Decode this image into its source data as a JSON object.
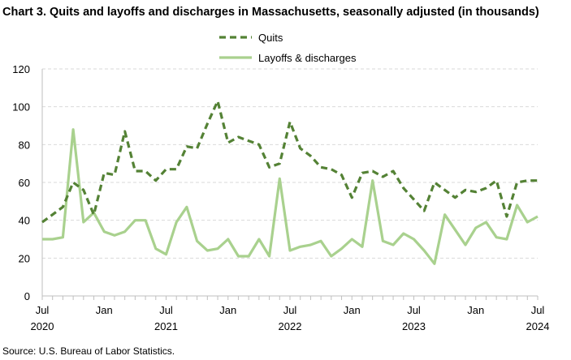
{
  "chart_data": {
    "type": "line",
    "title": "Chart 3. Quits and layoffs and discharges in Massachusetts, seasonally adjusted (in thousands)",
    "source": "Source: U.S. Bureau of Labor Statistics.",
    "legend_position": "top-center",
    "grid": true,
    "ylim": [
      0,
      120
    ],
    "yticks": [
      0,
      20,
      40,
      60,
      80,
      100,
      120
    ],
    "x_tick_labels": [
      {
        "month": "Jul",
        "year": "2020"
      },
      {
        "month": "Jan",
        "year": ""
      },
      {
        "month": "Jul",
        "year": "2021"
      },
      {
        "month": "Jan",
        "year": ""
      },
      {
        "month": "Jul",
        "year": "2022"
      },
      {
        "month": "Jan",
        "year": ""
      },
      {
        "month": "Jul",
        "year": "2023"
      },
      {
        "month": "Jan",
        "year": ""
      },
      {
        "month": "Jul",
        "year": "2024"
      }
    ],
    "x": [
      "2020-07",
      "2020-08",
      "2020-09",
      "2020-10",
      "2020-11",
      "2020-12",
      "2021-01",
      "2021-02",
      "2021-03",
      "2021-04",
      "2021-05",
      "2021-06",
      "2021-07",
      "2021-08",
      "2021-09",
      "2021-10",
      "2021-11",
      "2021-12",
      "2022-01",
      "2022-02",
      "2022-03",
      "2022-04",
      "2022-05",
      "2022-06",
      "2022-07",
      "2022-08",
      "2022-09",
      "2022-10",
      "2022-11",
      "2022-12",
      "2023-01",
      "2023-02",
      "2023-03",
      "2023-04",
      "2023-05",
      "2023-06",
      "2023-07",
      "2023-08",
      "2023-09",
      "2023-10",
      "2023-11",
      "2023-12",
      "2024-01",
      "2024-02",
      "2024-03",
      "2024-04",
      "2024-05",
      "2024-06",
      "2024-07"
    ],
    "series": [
      {
        "name": "Quits",
        "color": "#548235",
        "style": "dashed",
        "values": [
          39,
          43,
          47,
          60,
          56,
          43,
          65,
          64,
          87,
          66,
          66,
          61,
          67,
          67,
          79,
          78,
          91,
          103,
          81,
          84,
          82,
          80,
          68,
          70,
          92,
          78,
          74,
          68,
          67,
          64,
          52,
          65,
          66,
          63,
          66,
          57,
          51,
          45,
          60,
          56,
          52,
          56,
          55,
          57,
          61,
          42,
          60,
          61,
          61
        ]
      },
      {
        "name": "Layoffs & discharges",
        "color": "#a9d18e",
        "style": "solid",
        "values": [
          30,
          30,
          31,
          88,
          39,
          44,
          34,
          32,
          34,
          40,
          40,
          25,
          22,
          39,
          47,
          29,
          24,
          25,
          30,
          21,
          21,
          30,
          21,
          62,
          24,
          26,
          27,
          29,
          21,
          25,
          30,
          26,
          61,
          29,
          27,
          33,
          30,
          24,
          17,
          43,
          35,
          27,
          36,
          39,
          31,
          30,
          48,
          39,
          42
        ]
      }
    ]
  }
}
